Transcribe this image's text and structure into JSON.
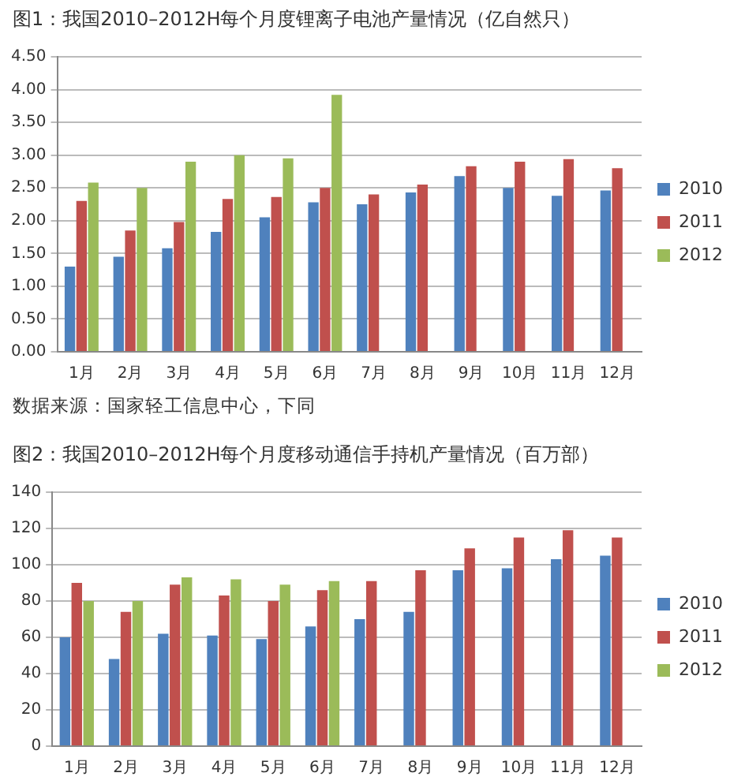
{
  "chart_data": [
    {
      "type": "bar",
      "title": "图1：我国2010–2012H每个月度锂离子电池产量情况（亿自然只）",
      "categories": [
        "1月",
        "2月",
        "3月",
        "4月",
        "5月",
        "6月",
        "7月",
        "8月",
        "9月",
        "10月",
        "11月",
        "12月"
      ],
      "series": [
        {
          "name": "2010",
          "color": "#4f81bd",
          "values": [
            1.3,
            1.45,
            1.58,
            1.83,
            2.05,
            2.28,
            2.25,
            2.43,
            2.68,
            2.5,
            2.38,
            2.46
          ]
        },
        {
          "name": "2011",
          "color": "#c0504d",
          "values": [
            2.3,
            1.85,
            1.98,
            2.33,
            2.36,
            2.5,
            2.4,
            2.55,
            2.83,
            2.9,
            2.94,
            2.8
          ]
        },
        {
          "name": "2012",
          "color": "#9bbb59",
          "values": [
            2.58,
            2.5,
            2.9,
            3.0,
            2.95,
            3.92,
            null,
            null,
            null,
            null,
            null,
            null
          ]
        }
      ],
      "ylim": [
        0,
        4.5
      ],
      "yticks": [
        {
          "value": 0,
          "label": "0.00"
        },
        {
          "value": 0.5,
          "label": "0.50"
        },
        {
          "value": 1,
          "label": "1.00"
        },
        {
          "value": 1.5,
          "label": "1.50"
        },
        {
          "value": 2,
          "label": "2.00"
        },
        {
          "value": 2.5,
          "label": "2.50"
        },
        {
          "value": 3,
          "label": "3.00"
        },
        {
          "value": 3.5,
          "label": "3.50"
        },
        {
          "value": 4,
          "label": "4.00"
        },
        {
          "value": 4.5,
          "label": "4.50"
        }
      ],
      "grid": "y",
      "legend": "right",
      "annotations": [
        "数据来源：国家轻工信息中心，下同"
      ]
    },
    {
      "type": "bar",
      "title": "图2：我国2010–2012H每个月度移动通信手持机产量情况（百万部）",
      "categories": [
        "1月",
        "2月",
        "3月",
        "4月",
        "5月",
        "6月",
        "7月",
        "8月",
        "9月",
        "10月",
        "11月",
        "12月"
      ],
      "series": [
        {
          "name": "2010",
          "color": "#4f81bd",
          "values": [
            60,
            48,
            62,
            61,
            59,
            66,
            70,
            74,
            97,
            98,
            103,
            105
          ]
        },
        {
          "name": "2011",
          "color": "#c0504d",
          "values": [
            90,
            74,
            89,
            83,
            80,
            86,
            91,
            97,
            109,
            115,
            119,
            115
          ]
        },
        {
          "name": "2012",
          "color": "#9bbb59",
          "values": [
            80,
            80,
            93,
            92,
            89,
            91,
            null,
            null,
            null,
            null,
            null,
            null
          ]
        }
      ],
      "ylim": [
        0,
        140
      ],
      "yticks": [
        0,
        20,
        40,
        60,
        80,
        100,
        120,
        140
      ],
      "grid": "y",
      "legend": "right"
    }
  ]
}
